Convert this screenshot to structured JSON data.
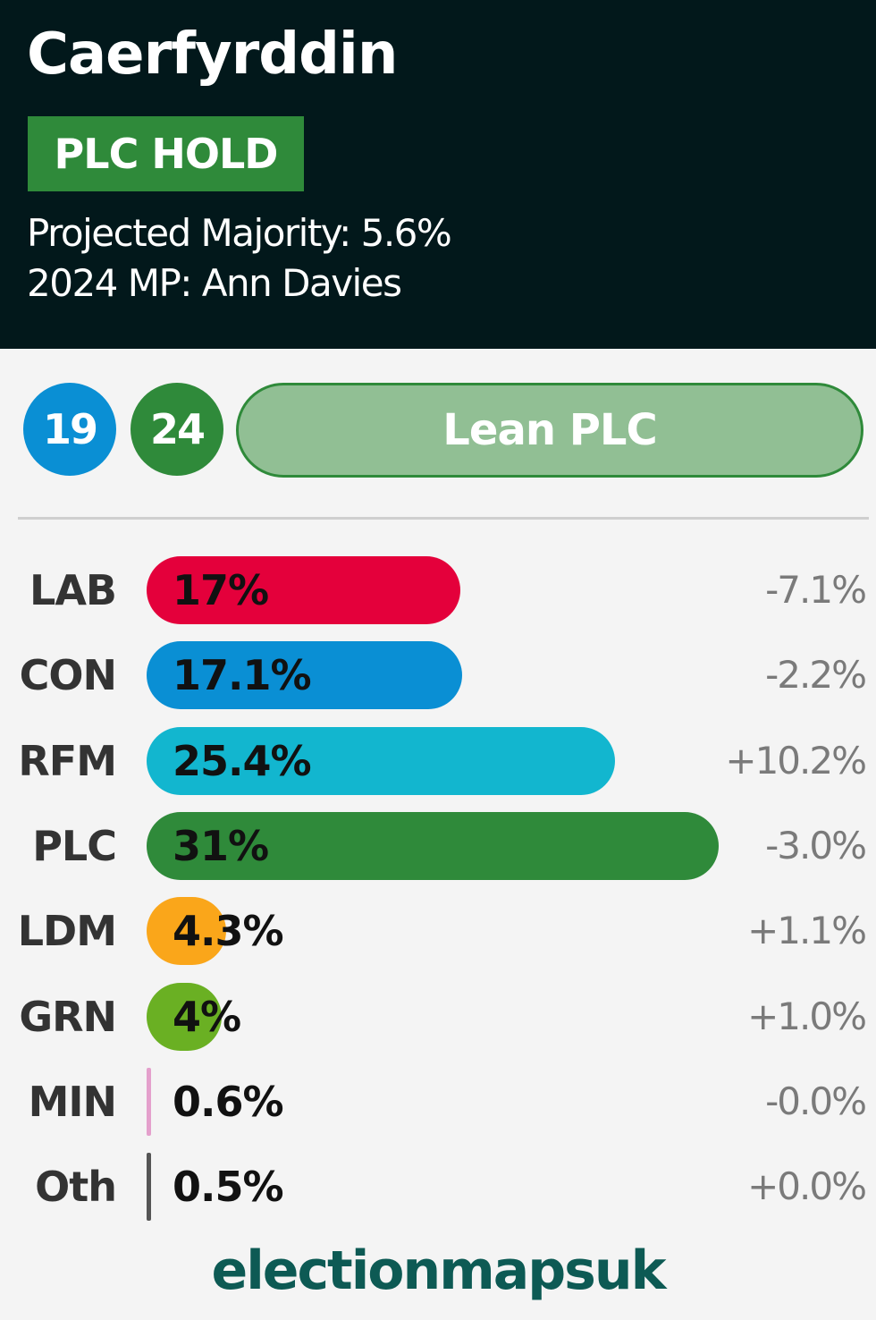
{
  "header": {
    "constituency": "Caerfyrddin",
    "result_badge": "PLC HOLD",
    "projected_majority": "Projected Majority: 5.6%",
    "mp_2024": "2024 MP: Ann Davies",
    "background_color": "#02181b",
    "badge_color": "#2f8a3a"
  },
  "summary": {
    "previous_winner_value": "19",
    "projected_value": "24",
    "rating": "Lean PLC",
    "previous_color": "#0a8fd4",
    "projected_color": "#2f8a3a"
  },
  "chart_data": {
    "type": "bar",
    "orientation": "horizontal",
    "categories": [
      "LAB",
      "CON",
      "RFM",
      "PLC",
      "LDM",
      "GRN",
      "MIN",
      "Oth"
    ],
    "values": [
      17,
      17.1,
      25.4,
      31,
      4.3,
      4,
      0.6,
      0.5
    ],
    "value_labels": [
      "17%",
      "17.1%",
      "25.4%",
      "31%",
      "4.3%",
      "4%",
      "0.6%",
      "0.5%"
    ],
    "changes": [
      "-7.1%",
      "-2.2%",
      "+10.2%",
      "-3.0%",
      "+1.1%",
      "+1.0%",
      "-0.0%",
      "+0.0%"
    ],
    "colors": [
      "#e4003b",
      "#0a8fd4",
      "#12b6cf",
      "#2f8a3a",
      "#faa61a",
      "#6ab023",
      "#e4a0cc",
      "#555555"
    ],
    "xlim": [
      0,
      31
    ]
  },
  "footer": {
    "brand": "electionmapsuk",
    "brand_color": "#0d5a54"
  }
}
